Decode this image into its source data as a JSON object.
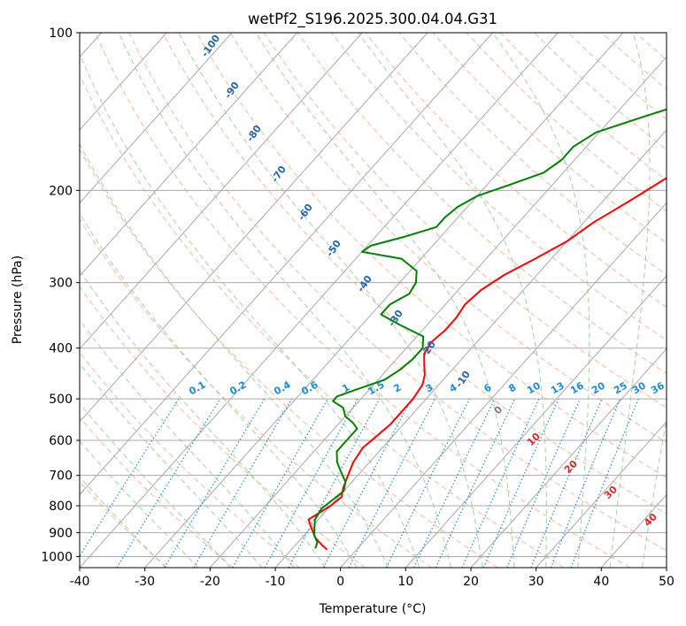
{
  "chart_data": {
    "type": "line",
    "title": "wetPf2_S196.2025.300.04.04.G31",
    "xlabel": "Temperature (°C)",
    "ylabel": "Pressure (hPa)",
    "xlim": [
      -40,
      50
    ],
    "ylim": [
      1050,
      100
    ],
    "y_scale": "log",
    "x_ticks": [
      "-40",
      "-30",
      "-20",
      "-10",
      "0",
      "10",
      "20",
      "30",
      "40",
      "50"
    ],
    "y_ticks": [
      "100",
      "200",
      "300",
      "400",
      "500",
      "600",
      "700",
      "800",
      "900",
      "1000"
    ],
    "grid": true,
    "series": [
      {
        "color": "#ff0000",
        "pressure": [
          970,
          950,
          920,
          880,
          850,
          800,
          770,
          740,
          700,
          660,
          620,
          590,
          560,
          530,
          500,
          470,
          450,
          430,
          410,
          390,
          370,
          350,
          330,
          310,
          290,
          270,
          250,
          230,
          210,
          190,
          170,
          150,
          130,
          115,
          100
        ],
        "temperature": [
          -4.5,
          -6,
          -8,
          -10,
          -11.5,
          -10,
          -9.5,
          -10.5,
          -11.5,
          -12.5,
          -13,
          -12.5,
          -12,
          -12,
          -12,
          -12.5,
          -13.5,
          -15,
          -16.5,
          -17,
          -16.5,
          -16.5,
          -17,
          -16.5,
          -15,
          -12.5,
          -10,
          -8.5,
          -6,
          -3.5,
          -0.5,
          2.5,
          7,
          12,
          21.5
        ]
      },
      {
        "color": "#008000",
        "pressure": [
          965,
          940,
          910,
          880,
          850,
          810,
          780,
          750,
          720,
          690,
          660,
          630,
          600,
          570,
          555,
          540,
          520,
          505,
          495,
          480,
          460,
          440,
          420,
          400,
          380,
          360,
          345,
          330,
          315,
          300,
          285,
          270,
          262,
          262,
          255,
          245,
          235,
          225,
          215,
          205,
          195,
          185,
          175,
          165,
          155,
          145,
          135,
          125,
          115,
          100
        ],
        "temperature": [
          -6.5,
          -7,
          -8.5,
          -9.5,
          -10.5,
          -11,
          -10.5,
          -10,
          -11,
          -13,
          -15,
          -16.5,
          -16.5,
          -16.5,
          -18,
          -20,
          -21.5,
          -24,
          -24,
          -22,
          -19,
          -18,
          -17.5,
          -17.5,
          -19,
          -24.5,
          -28.5,
          -28.5,
          -27,
          -27.5,
          -29,
          -33,
          -40,
          -40,
          -39.5,
          -35.5,
          -32,
          -32,
          -31.5,
          -30,
          -26.5,
          -23,
          -22,
          -22,
          -20.5,
          -15.5,
          -10,
          -8,
          -7,
          -7
        ]
      }
    ],
    "mixing_ratio_labels": [
      "0.1",
      "0.2",
      "0.4",
      "0.6",
      "1",
      "1.5",
      "2",
      "3",
      "4",
      "6",
      "8",
      "10",
      "13",
      "16",
      "20",
      "25",
      "30",
      "36"
    ],
    "dry_adiabat_labels": [
      "-100",
      "-90",
      "-80",
      "-70",
      "-60",
      "-50",
      "-40",
      "-30",
      "-20",
      "-10"
    ],
    "moist_adiabat_labels": [
      "0",
      "10",
      "20",
      "30",
      "40"
    ],
    "colors": {
      "temperature": "#ff0000",
      "dewpoint": "#008000",
      "dry_adiabat": "#f4a582",
      "moist_adiabat": "#8cc88c",
      "mixing_ratio": "#1f8bd6",
      "dry_label": "#2166ac",
      "moist_label": "#d62728",
      "grid": "#aaaaaa"
    }
  }
}
